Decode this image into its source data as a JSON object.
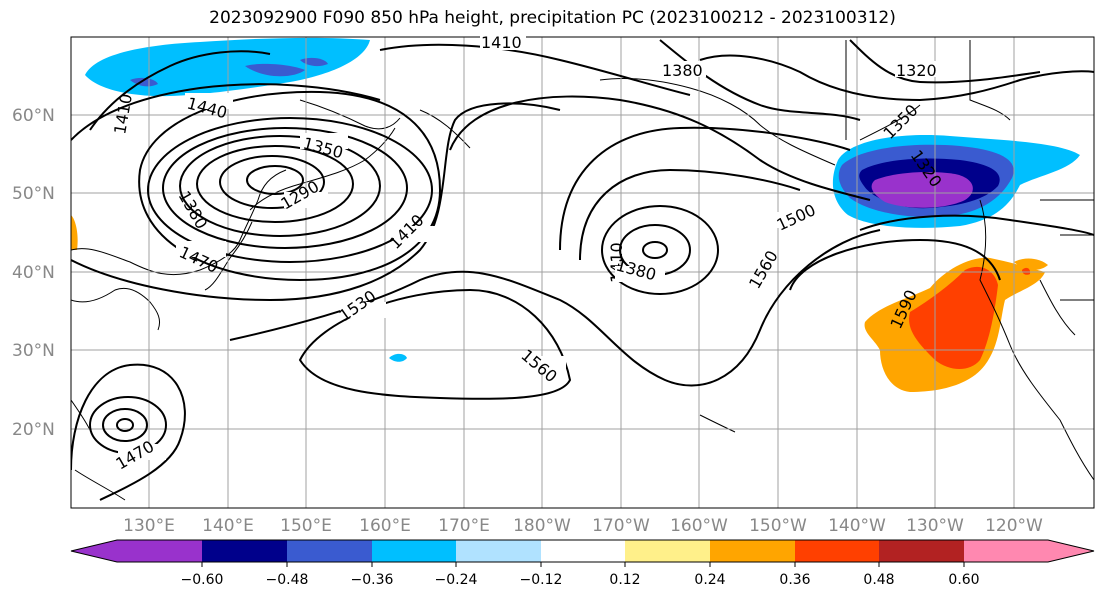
{
  "title": "2023092900 F090 850 hPa height, precipitation PC (2023100212 - 2023100312)",
  "lat_labels": [
    "60°N",
    "50°N",
    "40°N",
    "30°N",
    "20°N"
  ],
  "lon_labels": [
    "130°E",
    "140°E",
    "150°E",
    "160°E",
    "170°E",
    "180°W",
    "170°W",
    "160°W",
    "150°W",
    "140°W",
    "130°W",
    "120°W"
  ],
  "contour_labels": [
    "1410",
    "1380",
    "1320",
    "1410",
    "1440",
    "1350",
    "1290",
    "1380",
    "1410",
    "1470",
    "1530",
    "1560",
    "1410",
    "1380",
    "1500",
    "1560",
    "1590",
    "1470",
    "1350",
    "1320"
  ],
  "colorbar": {
    "colors": [
      "#9932cc",
      "#00008b",
      "#3a5bd0",
      "#00bfff",
      "#b0e2ff",
      "#ffffff",
      "#fff08a",
      "#ffa500",
      "#ff4000",
      "#b22222",
      "#ff88b0"
    ],
    "tick_labels": [
      "−0.60",
      "−0.48",
      "−0.36",
      "−0.24",
      "−0.12",
      "0.12",
      "0.24",
      "0.36",
      "0.48",
      "0.60"
    ]
  }
}
